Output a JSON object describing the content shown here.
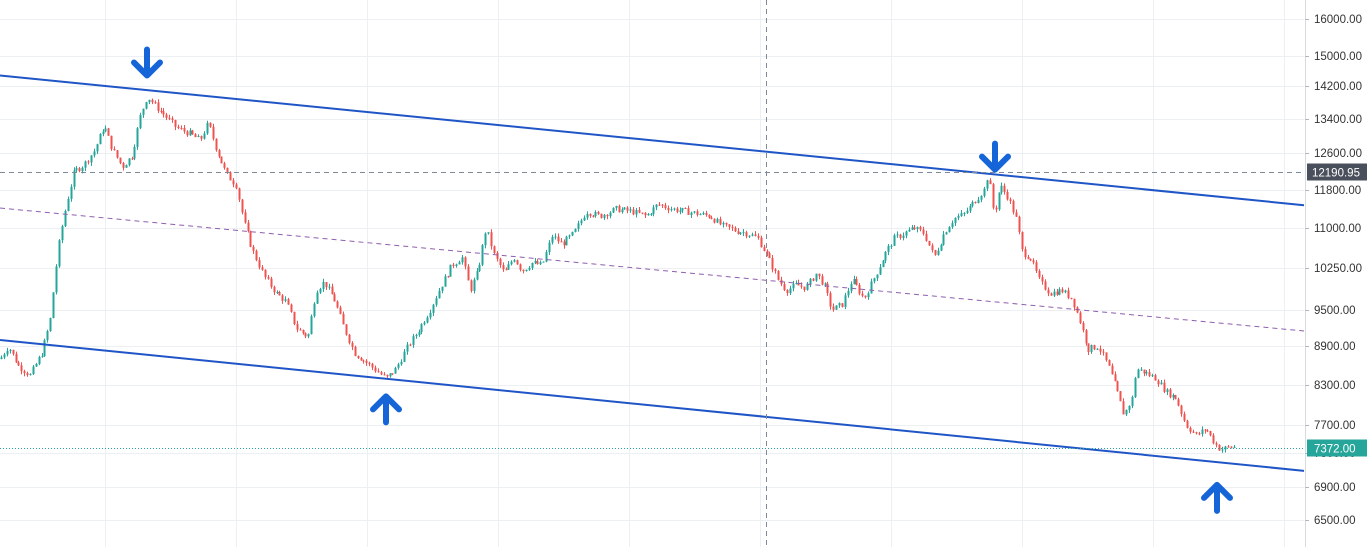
{
  "chart_data": {
    "type": "candlestick",
    "title": "",
    "xlabel": "",
    "ylabel": "",
    "ylim": [
      6250,
      16350
    ],
    "y_axis_position": "right",
    "grid": true,
    "y_ticks": [
      {
        "value": 16000,
        "label": "16000.00"
      },
      {
        "value": 15000,
        "label": "15000.00"
      },
      {
        "value": 14200,
        "label": "14200.00"
      },
      {
        "value": 13400,
        "label": "13400.00"
      },
      {
        "value": 12600,
        "label": "12600.00"
      },
      {
        "value": 11800,
        "label": "11800.00"
      },
      {
        "value": 11000,
        "label": "11000.00"
      },
      {
        "value": 10250,
        "label": "10250.00"
      },
      {
        "value": 9500,
        "label": "9500.00"
      },
      {
        "value": 8900,
        "label": "8900.00"
      },
      {
        "value": 8300,
        "label": "8300.00"
      },
      {
        "value": 7700,
        "label": "7700.00"
      },
      {
        "value": 7300,
        "label": "7300.00"
      },
      {
        "value": 6900,
        "label": "6900.00"
      },
      {
        "value": 6500,
        "label": "6500.00"
      }
    ],
    "price_path": [
      [
        0,
        8700
      ],
      [
        8,
        8900
      ],
      [
        18,
        8600
      ],
      [
        30,
        8450
      ],
      [
        42,
        8800
      ],
      [
        50,
        9300
      ],
      [
        58,
        10600
      ],
      [
        66,
        11500
      ],
      [
        74,
        12200
      ],
      [
        84,
        12350
      ],
      [
        94,
        12650
      ],
      [
        104,
        13250
      ],
      [
        112,
        12700
      ],
      [
        122,
        12300
      ],
      [
        132,
        12550
      ],
      [
        140,
        13450
      ],
      [
        147,
        13950
      ],
      [
        156,
        13700
      ],
      [
        166,
        13450
      ],
      [
        176,
        13200
      ],
      [
        190,
        13050
      ],
      [
        200,
        12900
      ],
      [
        208,
        13300
      ],
      [
        216,
        12700
      ],
      [
        226,
        12150
      ],
      [
        236,
        11900
      ],
      [
        244,
        11100
      ],
      [
        252,
        10600
      ],
      [
        264,
        10100
      ],
      [
        276,
        9800
      ],
      [
        286,
        9650
      ],
      [
        296,
        9200
      ],
      [
        308,
        9050
      ],
      [
        316,
        9850
      ],
      [
        324,
        10000
      ],
      [
        334,
        9700
      ],
      [
        344,
        9200
      ],
      [
        354,
        8800
      ],
      [
        366,
        8650
      ],
      [
        378,
        8500
      ],
      [
        386,
        8400
      ],
      [
        396,
        8550
      ],
      [
        406,
        8850
      ],
      [
        418,
        9150
      ],
      [
        430,
        9500
      ],
      [
        440,
        9900
      ],
      [
        452,
        10300
      ],
      [
        462,
        10450
      ],
      [
        470,
        9850
      ],
      [
        478,
        10200
      ],
      [
        486,
        11000
      ],
      [
        494,
        10500
      ],
      [
        504,
        10150
      ],
      [
        514,
        10450
      ],
      [
        522,
        10200
      ],
      [
        532,
        10350
      ],
      [
        542,
        10300
      ],
      [
        552,
        10850
      ],
      [
        562,
        10700
      ],
      [
        574,
        10900
      ],
      [
        586,
        11350
      ],
      [
        600,
        11250
      ],
      [
        616,
        11400
      ],
      [
        632,
        11350
      ],
      [
        646,
        11250
      ],
      [
        658,
        11500
      ],
      [
        672,
        11400
      ],
      [
        686,
        11350
      ],
      [
        698,
        11300
      ],
      [
        710,
        11250
      ],
      [
        722,
        11050
      ],
      [
        736,
        10950
      ],
      [
        748,
        10900
      ],
      [
        758,
        10800
      ],
      [
        768,
        10450
      ],
      [
        778,
        10050
      ],
      [
        786,
        9850
      ],
      [
        796,
        9950
      ],
      [
        806,
        9900
      ],
      [
        816,
        10150
      ],
      [
        824,
        9950
      ],
      [
        832,
        9500
      ],
      [
        842,
        9600
      ],
      [
        852,
        10050
      ],
      [
        864,
        9700
      ],
      [
        876,
        10150
      ],
      [
        886,
        10550
      ],
      [
        894,
        10800
      ],
      [
        904,
        10900
      ],
      [
        914,
        11000
      ],
      [
        924,
        10900
      ],
      [
        934,
        10450
      ],
      [
        944,
        10900
      ],
      [
        954,
        11200
      ],
      [
        964,
        11300
      ],
      [
        974,
        11550
      ],
      [
        984,
        11800
      ],
      [
        988,
        12150
      ],
      [
        994,
        11250
      ],
      [
        1000,
        11900
      ],
      [
        1008,
        11650
      ],
      [
        1016,
        11200
      ],
      [
        1022,
        10550
      ],
      [
        1030,
        10450
      ],
      [
        1040,
        10000
      ],
      [
        1050,
        9800
      ],
      [
        1062,
        9850
      ],
      [
        1072,
        9700
      ],
      [
        1080,
        9300
      ],
      [
        1088,
        8850
      ],
      [
        1098,
        8900
      ],
      [
        1108,
        8600
      ],
      [
        1116,
        8250
      ],
      [
        1124,
        7850
      ],
      [
        1132,
        8100
      ],
      [
        1136,
        8550
      ],
      [
        1144,
        8500
      ],
      [
        1156,
        8400
      ],
      [
        1166,
        8200
      ],
      [
        1176,
        8100
      ],
      [
        1186,
        7700
      ],
      [
        1196,
        7550
      ],
      [
        1206,
        7650
      ],
      [
        1214,
        7450
      ],
      [
        1220,
        7350
      ],
      [
        1228,
        7380
      ],
      [
        1236,
        7390
      ]
    ],
    "annotations": {
      "upper_channel": {
        "from": [
          0,
          14480
        ],
        "to": [
          1304,
          11480
        ]
      },
      "lower_channel": {
        "from": [
          0,
          9000
        ],
        "to": [
          1304,
          7090
        ]
      },
      "mid_line": {
        "from": [
          0,
          11420
        ],
        "to": [
          1304,
          9150
        ]
      },
      "arrows": [
        {
          "direction": "down",
          "x": 147,
          "value": 14800
        },
        {
          "direction": "up",
          "x": 386,
          "value": 7950
        },
        {
          "direction": "down",
          "x": 995,
          "value": 12500
        },
        {
          "direction": "up",
          "x": 1217,
          "value": 6780
        }
      ],
      "crosshair": {
        "x": 766,
        "value": 12190.95,
        "label": "12190.95"
      },
      "last_price": {
        "value": 7372,
        "label": "7372.00",
        "color": "#26a69a"
      }
    },
    "colors": {
      "up": "#26a69a",
      "down": "#ef5350",
      "channel": "#1f55c6",
      "mid_line": "#8e5fae",
      "arrow": "#1565d8"
    }
  }
}
